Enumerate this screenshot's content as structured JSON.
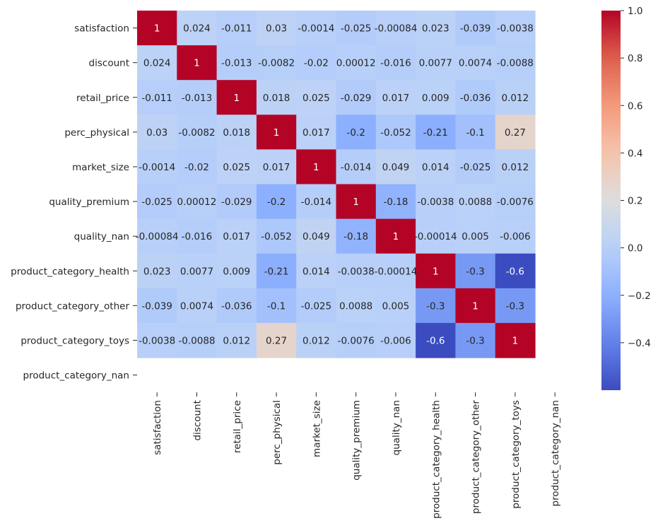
{
  "chart_data": {
    "type": "heatmap",
    "title": "",
    "xlabel": "",
    "ylabel": "",
    "row_labels": [
      "satisfaction",
      "discount",
      "retail_price",
      "perc_physical",
      "market_size",
      "quality_premium",
      "quality_nan",
      "product_category_health",
      "product_category_other",
      "product_category_toys",
      "product_category_nan"
    ],
    "col_labels": [
      "satisfaction",
      "discount",
      "retail_price",
      "perc_physical",
      "market_size",
      "quality_premium",
      "quality_nan",
      "product_category_health",
      "product_category_other",
      "product_category_toys",
      "product_category_nan"
    ],
    "values": [
      [
        1,
        0.024,
        -0.011,
        0.03,
        -0.0014,
        -0.025,
        -0.00084,
        0.023,
        -0.039,
        -0.0038,
        null
      ],
      [
        0.024,
        1,
        -0.013,
        -0.0082,
        -0.02,
        0.00012,
        -0.016,
        0.0077,
        0.0074,
        -0.0088,
        null
      ],
      [
        -0.011,
        -0.013,
        1,
        0.018,
        0.025,
        -0.029,
        0.017,
        0.009,
        -0.036,
        0.012,
        null
      ],
      [
        0.03,
        -0.0082,
        0.018,
        1,
        0.017,
        -0.2,
        -0.052,
        -0.21,
        -0.1,
        0.27,
        null
      ],
      [
        -0.0014,
        -0.02,
        0.025,
        0.017,
        1,
        -0.014,
        0.049,
        0.014,
        -0.025,
        0.012,
        null
      ],
      [
        -0.025,
        0.00012,
        -0.029,
        -0.2,
        -0.014,
        1,
        -0.18,
        -0.0038,
        0.0088,
        -0.0076,
        null
      ],
      [
        -0.00084,
        -0.016,
        0.017,
        -0.052,
        0.049,
        -0.18,
        1,
        -0.00014,
        0.005,
        -0.006,
        null
      ],
      [
        0.023,
        0.0077,
        0.009,
        -0.21,
        0.014,
        -0.0038,
        -0.00014,
        1,
        -0.3,
        -0.6,
        null
      ],
      [
        -0.039,
        0.0074,
        -0.036,
        -0.1,
        -0.025,
        0.0088,
        0.005,
        -0.3,
        1,
        -0.3,
        null
      ],
      [
        -0.0038,
        -0.0088,
        0.012,
        0.27,
        0.012,
        -0.0076,
        -0.006,
        -0.6,
        -0.3,
        1,
        null
      ],
      [
        null,
        null,
        null,
        null,
        null,
        null,
        null,
        null,
        null,
        null,
        null
      ]
    ],
    "cell_labels": [
      [
        "1",
        "0.024",
        "-0.011",
        "0.03",
        "-0.0014",
        "-0.025",
        "-0.00084",
        "0.023",
        "-0.039",
        "-0.0038",
        ""
      ],
      [
        "0.024",
        "1",
        "-0.013",
        "-0.0082",
        "-0.02",
        "0.00012",
        "-0.016",
        "0.0077",
        "0.0074",
        "-0.0088",
        ""
      ],
      [
        "-0.011",
        "-0.013",
        "1",
        "0.018",
        "0.025",
        "-0.029",
        "0.017",
        "0.009",
        "-0.036",
        "0.012",
        ""
      ],
      [
        "0.03",
        "-0.0082",
        "0.018",
        "1",
        "0.017",
        "-0.2",
        "-0.052",
        "-0.21",
        "-0.1",
        "0.27",
        ""
      ],
      [
        "-0.0014",
        "-0.02",
        "0.025",
        "0.017",
        "1",
        "-0.014",
        "0.049",
        "0.014",
        "-0.025",
        "0.012",
        ""
      ],
      [
        "-0.025",
        "0.00012",
        "-0.029",
        "-0.2",
        "-0.014",
        "1",
        "-0.18",
        "-0.0038",
        "0.0088",
        "-0.0076",
        ""
      ],
      [
        "-0.00084",
        "-0.016",
        "0.017",
        "-0.052",
        "0.049",
        "-0.18",
        "1",
        "-0.00014",
        "0.005",
        "-0.006",
        ""
      ],
      [
        "0.023",
        "0.0077",
        "0.009",
        "-0.21",
        "0.014",
        "-0.0038",
        "-0.00014",
        "1",
        "-0.3",
        "-0.6",
        ""
      ],
      [
        "-0.039",
        "0.0074",
        "-0.036",
        "-0.1",
        "-0.025",
        "0.0088",
        "0.005",
        "-0.3",
        "1",
        "-0.3",
        ""
      ],
      [
        "-0.0038",
        "-0.0088",
        "0.012",
        "0.27",
        "0.012",
        "-0.0076",
        "-0.006",
        "-0.6",
        "-0.3",
        "1",
        ""
      ],
      [
        "",
        "",
        "",
        "",
        "",
        "",
        "",
        "",
        "",
        "",
        ""
      ]
    ],
    "colormap": "coolwarm",
    "vmin": -0.6,
    "vmax": 1.0,
    "colorbar_ticks": [
      1.0,
      0.8,
      0.6,
      0.4,
      0.2,
      0.0,
      -0.2,
      -0.4
    ],
    "colorbar_tick_labels": [
      "1.0",
      "0.8",
      "0.6",
      "0.4",
      "0.2",
      "0.0",
      "−0.2",
      "−0.4"
    ],
    "grid": false,
    "legend": "colorbar-right"
  }
}
